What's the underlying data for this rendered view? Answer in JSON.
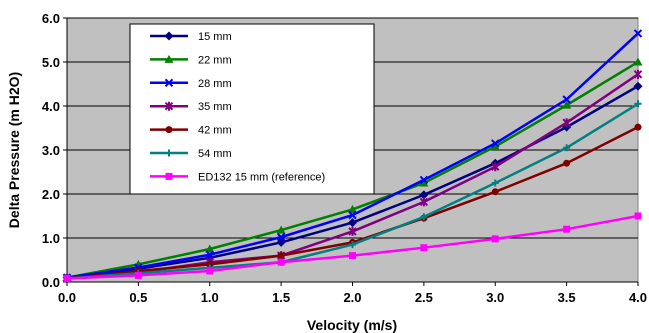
{
  "chart_data": {
    "type": "line",
    "title": "",
    "xlabel": "Velocity (m/s)",
    "ylabel": "Delta Pressure (m H2O)",
    "xlim": [
      0,
      4
    ],
    "ylim": [
      0,
      6
    ],
    "x_ticks": [
      "0.0",
      "0.5",
      "1.0",
      "1.5",
      "2.0",
      "2.5",
      "3.0",
      "3.5",
      "4.0"
    ],
    "y_ticks": [
      "0.0",
      "1.0",
      "2.0",
      "3.0",
      "4.0",
      "5.0",
      "6.0"
    ],
    "grid": "horizontal",
    "plot_background": "#c0c0c0",
    "legend_position": "top-left inside plot",
    "x": [
      0.0,
      0.5,
      1.0,
      1.5,
      2.0,
      2.5,
      3.0,
      3.5,
      4.0
    ],
    "series": [
      {
        "name": "15 mm",
        "color": "#000080",
        "marker": "diamond",
        "values": [
          0.1,
          0.3,
          0.55,
          0.9,
          1.35,
          1.98,
          2.7,
          3.52,
          4.45
        ]
      },
      {
        "name": "22 mm",
        "color": "#008000",
        "marker": "triangle",
        "values": [
          0.1,
          0.4,
          0.75,
          1.18,
          1.65,
          2.25,
          3.08,
          4.02,
          5.0
        ]
      },
      {
        "name": "28 mm",
        "color": "#0000ff",
        "marker": "x",
        "values": [
          0.1,
          0.33,
          0.62,
          1.02,
          1.52,
          2.32,
          3.15,
          4.15,
          5.65
        ]
      },
      {
        "name": "35 mm",
        "color": "#800080",
        "marker": "star",
        "values": [
          0.08,
          0.22,
          0.45,
          0.6,
          1.15,
          1.82,
          2.62,
          3.62,
          4.72
        ]
      },
      {
        "name": "42 mm",
        "color": "#800000",
        "marker": "circle",
        "values": [
          0.08,
          0.25,
          0.4,
          0.6,
          0.9,
          1.45,
          2.05,
          2.7,
          3.52
        ]
      },
      {
        "name": "54 mm",
        "color": "#008080",
        "marker": "plus",
        "values": [
          0.08,
          0.2,
          0.32,
          0.45,
          0.85,
          1.48,
          2.25,
          3.05,
          4.05
        ]
      },
      {
        "name": "ED132 15 mm (reference)",
        "color": "#ff00ff",
        "marker": "square",
        "values": [
          0.08,
          0.15,
          0.25,
          0.45,
          0.6,
          0.78,
          0.98,
          1.2,
          1.5
        ]
      }
    ]
  }
}
